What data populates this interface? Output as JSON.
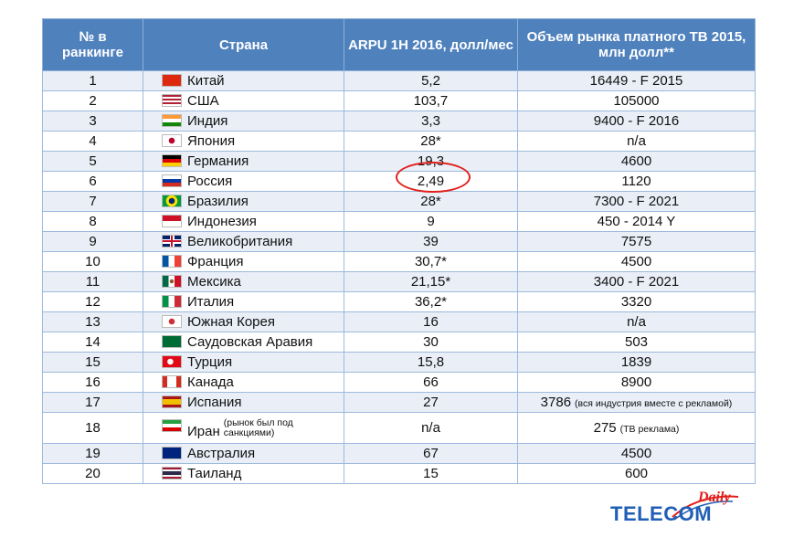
{
  "table": {
    "headers": {
      "rank": "№ в ранкинге",
      "country": "Страна",
      "arpu": "ARPU 1H 2016, долл/мес",
      "market": "Объем рынка платного ТВ 2015, млн долл**"
    },
    "rows": [
      {
        "rank": "1",
        "flag": "china-flag-icon",
        "country": "Китай",
        "arpu": "5,2",
        "market": "16449 -  F 2015"
      },
      {
        "rank": "2",
        "flag": "usa-flag-icon",
        "country": "США",
        "arpu": "103,7",
        "market": "105000"
      },
      {
        "rank": "3",
        "flag": "india-flag-icon",
        "country": "Индия",
        "arpu": "3,3",
        "market": "9400 - F 2016"
      },
      {
        "rank": "4",
        "flag": "japan-flag-icon",
        "country": "Япония",
        "arpu": "28*",
        "market": "n/a"
      },
      {
        "rank": "5",
        "flag": "germany-flag-icon",
        "country": "Германия",
        "arpu": "19,3",
        "market": "4600"
      },
      {
        "rank": "6",
        "flag": "russia-flag-icon",
        "country": "Россия",
        "arpu": "2,49",
        "market": "1120"
      },
      {
        "rank": "7",
        "flag": "brazil-flag-icon",
        "country": "Бразилия",
        "arpu": "28*",
        "market": "7300 -  F 2021"
      },
      {
        "rank": "8",
        "flag": "indonesia-flag-icon",
        "country": "Индонезия",
        "arpu": "9",
        "market": "450 - 2014 Y"
      },
      {
        "rank": "9",
        "flag": "uk-flag-icon",
        "country": "Великобритания",
        "arpu": "39",
        "market": "7575"
      },
      {
        "rank": "10",
        "flag": "france-flag-icon",
        "country": "Франция",
        "arpu": "30,7*",
        "market": "4500"
      },
      {
        "rank": "11",
        "flag": "mexico-flag-icon",
        "country": "Мексика",
        "arpu": "21,15*",
        "market": "3400 - F 2021"
      },
      {
        "rank": "12",
        "flag": "italy-flag-icon",
        "country": "Италия",
        "arpu": "36,2*",
        "market": "3320"
      },
      {
        "rank": "13",
        "flag": "south-korea-flag-icon",
        "country": "Южная Корея",
        "arpu": "16",
        "market": "n/a"
      },
      {
        "rank": "14",
        "flag": "saudi-arabia-flag-icon",
        "country": "Саудовская Аравия",
        "arpu": "30",
        "market": "503"
      },
      {
        "rank": "15",
        "flag": "turkey-flag-icon",
        "country": "Турция",
        "arpu": "15,8",
        "market": "1839"
      },
      {
        "rank": "16",
        "flag": "canada-flag-icon",
        "country": "Канада",
        "arpu": "66",
        "market": "8900"
      },
      {
        "rank": "17",
        "flag": "spain-flag-icon",
        "country": "Испания",
        "arpu": "27",
        "market": "3786",
        "market_note": "(вся индустрия вместе с рекламой)"
      },
      {
        "rank": "18",
        "flag": "iran-flag-icon",
        "country": "Иран",
        "country_note": "(рынок был под санкциями)",
        "arpu": "n/a",
        "market": "275",
        "market_note": "(ТВ реклама)"
      },
      {
        "rank": "19",
        "flag": "australia-flag-icon",
        "country": "Австралия",
        "arpu": "67",
        "market": "4500"
      },
      {
        "rank": "20",
        "flag": "thailand-flag-icon",
        "country": "Таиланд",
        "arpu": "15",
        "market": "600"
      }
    ]
  },
  "highlight": {
    "target": "Россия ARPU 2,49",
    "color": "#e0201c"
  },
  "logo": {
    "main": "TELECOM",
    "sub": "Daily"
  },
  "colors": {
    "header_bg": "#4f81bd",
    "row_alt": "#e9eef7",
    "logo_blue": "#1f5fb5",
    "logo_red": "#e0201c"
  }
}
